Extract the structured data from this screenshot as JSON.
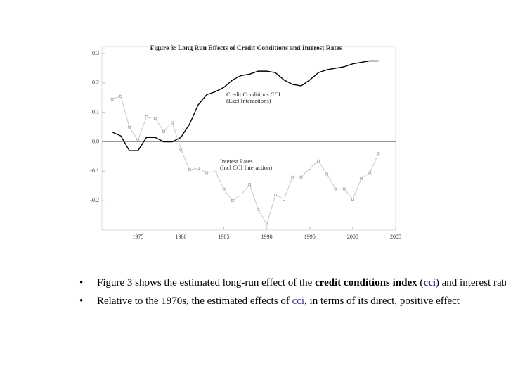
{
  "chart_data": {
    "type": "line",
    "title": "Figure 3: Long Run Effects of Credit Conditions and Interest Rates",
    "annotations": [
      [
        "Credit Conditions CCI",
        "(Excl Interactions)"
      ],
      [
        "Interest Rates",
        "(Incl CCI Interaction)"
      ]
    ],
    "x": [
      1972,
      1973,
      1974,
      1975,
      1976,
      1977,
      1978,
      1979,
      1980,
      1981,
      1982,
      1983,
      1984,
      1985,
      1986,
      1987,
      1988,
      1989,
      1990,
      1991,
      1992,
      1993,
      1994,
      1995,
      1996,
      1997,
      1998,
      1999,
      2000,
      2001,
      2002,
      2003
    ],
    "series": [
      {
        "name": "Credit Conditions CCI",
        "color": "#000000",
        "marker": false,
        "values": [
          0.033,
          0.02,
          -0.03,
          -0.03,
          0.015,
          0.015,
          0.0,
          0.0,
          0.015,
          0.06,
          0.125,
          0.16,
          0.17,
          0.185,
          0.21,
          0.225,
          0.23,
          0.24,
          0.24,
          0.235,
          0.21,
          0.195,
          0.19,
          0.21,
          0.235,
          0.245,
          0.25,
          0.255,
          0.265,
          0.27,
          0.275,
          0.275
        ]
      },
      {
        "name": "Interest Rates",
        "color": "#c8c8c8",
        "marker": true,
        "values": [
          0.145,
          0.155,
          0.05,
          0.005,
          0.085,
          0.08,
          0.035,
          0.065,
          -0.025,
          -0.095,
          -0.09,
          -0.105,
          -0.1,
          -0.16,
          -0.2,
          -0.18,
          -0.145,
          -0.23,
          -0.28,
          -0.18,
          -0.195,
          -0.12,
          -0.12,
          -0.09,
          -0.065,
          -0.11,
          -0.16,
          -0.16,
          -0.195,
          -0.125,
          -0.105,
          -0.04
        ]
      }
    ],
    "xlim": [
      1970.8,
      2005
    ],
    "xticks": [
      1975,
      1980,
      1985,
      1990,
      1995,
      2000,
      2005
    ],
    "ylim": [
      -0.3,
      0.324
    ],
    "yticks": [
      0.3,
      0.2,
      0.1,
      {
        "value": 0,
        "label": "0.0"
      },
      -0.1,
      -0.2
    ],
    "grid": false
  },
  "bullets": [
    [
      "Figure 3 shows the estimated long-run effect of the ",
      "credit conditions index",
      " (",
      "cci",
      ") and interest rates"
    ],
    [
      "Relative to the 1970s, the estimated effects of ",
      "cci",
      ", in terms of its direct, positive effect"
    ]
  ]
}
